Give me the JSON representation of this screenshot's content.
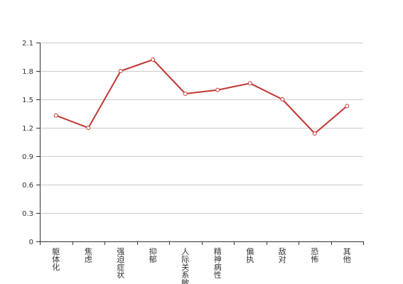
{
  "chart_data": {
    "type": "line",
    "categories": [
      "躯体化",
      "焦虑",
      "强迫症状",
      "抑郁",
      "人际关系敏",
      "精神病性",
      "偏执",
      "敌对",
      "恐怖",
      "其他"
    ],
    "series": [
      {
        "values": [
          1.33,
          1.2,
          1.8,
          1.92,
          1.56,
          1.6,
          1.67,
          1.5,
          1.14,
          1.43
        ]
      }
    ],
    "y_ticks": [
      "0",
      "0.3",
      "0.6",
      "0.9",
      "1.2",
      "1.5",
      "1.8",
      "2.1"
    ],
    "ylim": [
      0,
      2.1
    ],
    "grid": true,
    "color": "#c23531"
  }
}
